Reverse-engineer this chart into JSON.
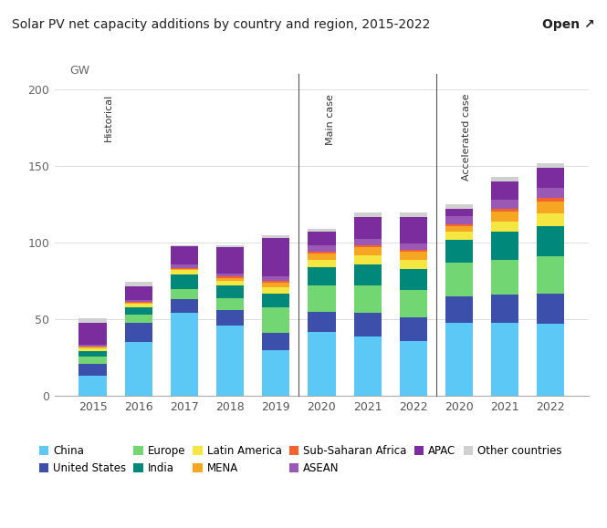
{
  "title": "Solar PV net capacity additions by country and region, 2015-2022",
  "ylabel": "GW",
  "ylim": [
    0,
    210
  ],
  "yticks": [
    0,
    50,
    100,
    150,
    200
  ],
  "bar_groups": [
    {
      "label": "2015",
      "group": "Historical"
    },
    {
      "label": "2016",
      "group": "Historical"
    },
    {
      "label": "2017",
      "group": "Historical"
    },
    {
      "label": "2018",
      "group": "Historical"
    },
    {
      "label": "2019",
      "group": "Historical"
    },
    {
      "label": "2020",
      "group": "Main case"
    },
    {
      "label": "2021",
      "group": "Main case"
    },
    {
      "label": "2022",
      "group": "Main case"
    },
    {
      "label": "2020",
      "group": "Accelerated case"
    },
    {
      "label": "2021",
      "group": "Accelerated case"
    },
    {
      "label": "2022",
      "group": "Accelerated case"
    }
  ],
  "series_order": [
    "China",
    "United States",
    "Europe",
    "India",
    "Latin America",
    "MENA",
    "Sub-Saharan Africa",
    "ASEAN",
    "APAC",
    "Other countries"
  ],
  "series": {
    "China": [
      13,
      35,
      54,
      46,
      30,
      42,
      39,
      36,
      48,
      48,
      47
    ],
    "United States": [
      8,
      13,
      9,
      10,
      11,
      13,
      15,
      15,
      17,
      18,
      20
    ],
    "Europe": [
      5,
      5,
      7,
      8,
      17,
      17,
      18,
      18,
      22,
      23,
      24
    ],
    "India": [
      3,
      5,
      9,
      8,
      9,
      12,
      14,
      14,
      15,
      18,
      20
    ],
    "Latin America": [
      2,
      2,
      3,
      3,
      4,
      5,
      6,
      6,
      5,
      7,
      8
    ],
    "MENA": [
      1,
      1,
      1,
      2,
      3,
      4,
      5,
      5,
      4,
      6,
      8
    ],
    "Sub-Saharan Africa": [
      0.5,
      0.5,
      0.5,
      1,
      1,
      1,
      1.5,
      1.5,
      1,
      2,
      2
    ],
    "ASEAN": [
      1,
      1,
      2,
      2,
      3,
      4,
      4,
      4,
      5,
      6,
      7
    ],
    "APAC": [
      14,
      9,
      12,
      17,
      25,
      9,
      14,
      17,
      5,
      12,
      13
    ],
    "Other countries": [
      3,
      3,
      1,
      1,
      2,
      2,
      3,
      3,
      3,
      3,
      3
    ]
  },
  "colors": {
    "China": "#5BC8F5",
    "United States": "#3B4FAB",
    "Europe": "#72D672",
    "India": "#00897B",
    "Latin America": "#F5E642",
    "MENA": "#F5A623",
    "Sub-Saharan Africa": "#F5622E",
    "ASEAN": "#9B59B6",
    "APAC": "#7B2D9E",
    "Other countries": "#D0D0D0"
  },
  "section_lines": [
    4.5,
    7.5
  ],
  "bg_color": "#ffffff"
}
